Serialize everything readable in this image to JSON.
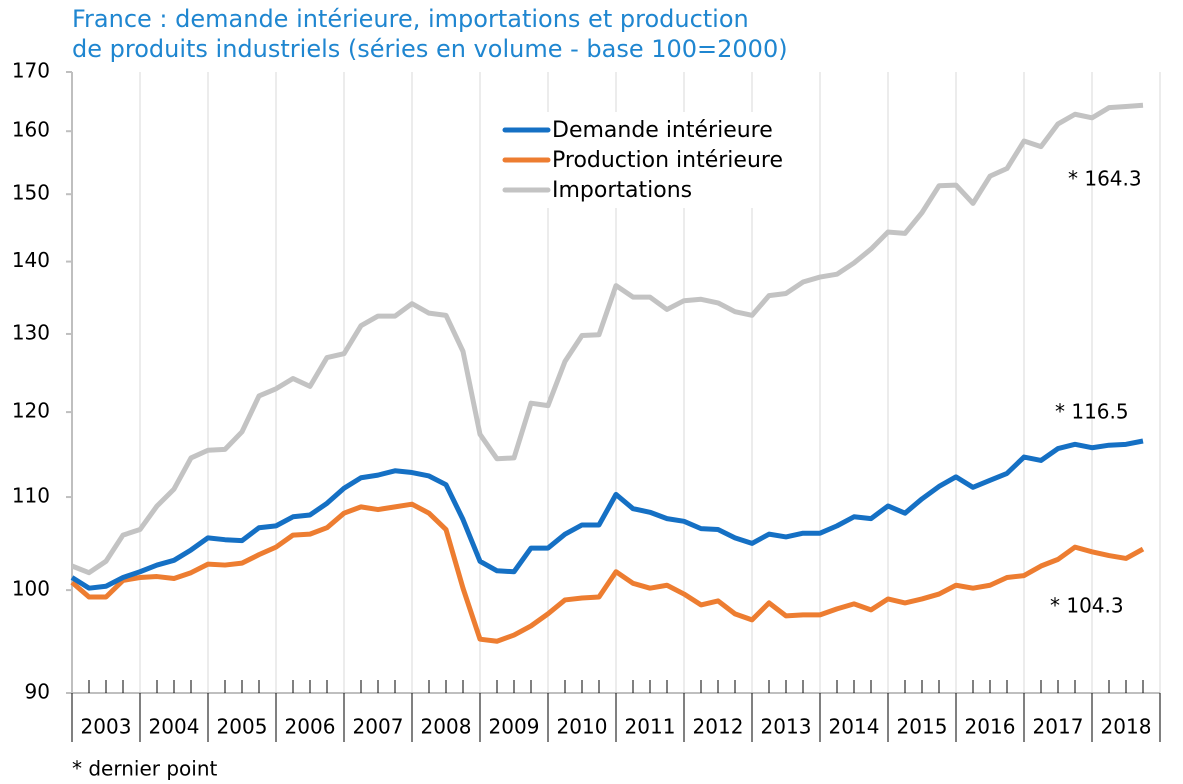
{
  "chart_data": {
    "type": "line",
    "title": [
      "France : demande intérieure, importations et production",
      "de produits industriels (séries en volume - base 100=2000)"
    ],
    "categories": [
      "2003",
      null,
      null,
      null,
      "2004",
      null,
      null,
      null,
      "2005",
      null,
      null,
      null,
      "2006",
      null,
      null,
      null,
      "2007",
      null,
      null,
      null,
      "2008",
      null,
      null,
      null,
      "2009",
      null,
      null,
      null,
      "2010",
      null,
      null,
      null,
      "2011",
      null,
      null,
      null,
      "2012",
      null,
      null,
      null,
      "2013",
      null,
      null,
      null,
      "2014",
      null,
      null,
      null,
      "2015",
      null,
      null,
      null,
      "2016",
      null,
      null,
      null,
      "2017",
      null,
      null,
      null,
      "2018",
      null,
      null,
      null
    ],
    "series": [
      {
        "name": "Demande intérieure",
        "color": "#1570c4",
        "values": [
          101.3,
          100.2,
          100.4,
          101.3,
          101.9,
          102.6,
          103.1,
          104.2,
          105.5,
          105.3,
          105.2,
          106.6,
          106.8,
          107.8,
          108.0,
          109.3,
          111.0,
          112.2,
          112.5,
          113.0,
          112.8,
          112.4,
          111.4,
          107.5,
          103.0,
          102.0,
          101.9,
          104.4,
          104.4,
          105.9,
          106.9,
          106.9,
          110.3,
          108.7,
          108.3,
          107.6,
          107.3,
          106.5,
          106.4,
          105.5,
          104.9,
          105.9,
          105.6,
          106.0,
          106.0,
          106.8,
          107.8,
          107.6,
          109.0,
          108.2,
          109.8,
          111.2,
          112.3,
          111.1,
          111.9,
          112.7,
          114.6,
          114.2,
          115.6,
          116.1,
          115.7,
          116.0,
          116.1,
          116.5
        ]
      },
      {
        "name": "Production intérieure",
        "color": "#ed7d31",
        "values": [
          100.8,
          99.3,
          99.3,
          101.0,
          101.3,
          101.4,
          101.2,
          101.8,
          102.7,
          102.6,
          102.8,
          103.7,
          104.5,
          105.8,
          105.9,
          106.6,
          108.2,
          108.9,
          108.6,
          108.9,
          109.2,
          108.2,
          106.4,
          100.2,
          95.1,
          94.9,
          95.5,
          96.4,
          97.6,
          99.0,
          99.2,
          99.3,
          101.9,
          100.7,
          100.2,
          100.5,
          99.6,
          98.5,
          98.9,
          97.6,
          97.0,
          98.7,
          97.4,
          97.5,
          97.5,
          98.1,
          98.6,
          98.0,
          99.1,
          98.7,
          99.1,
          99.6,
          100.5,
          100.2,
          100.5,
          101.3,
          101.5,
          102.5,
          103.2,
          104.5,
          104.0,
          103.6,
          103.3,
          104.3
        ]
      },
      {
        "name": "Importations",
        "color": "#c3c3c3",
        "values": [
          102.5,
          101.8,
          103.0,
          105.8,
          106.4,
          109.0,
          110.9,
          114.5,
          115.4,
          115.5,
          117.6,
          122.0,
          122.9,
          124.2,
          123.2,
          126.9,
          127.4,
          131.1,
          132.4,
          132.4,
          134.1,
          132.8,
          132.5,
          127.7,
          117.3,
          114.4,
          114.5,
          121.1,
          120.8,
          126.4,
          129.8,
          129.9,
          136.6,
          135.0,
          135.0,
          133.3,
          134.5,
          134.7,
          134.2,
          133.0,
          132.5,
          135.2,
          135.5,
          137.1,
          137.8,
          138.2,
          139.8,
          141.8,
          144.3,
          144.1,
          147.2,
          151.3,
          151.4,
          148.6,
          152.8,
          154.0,
          158.4,
          157.5,
          161.2,
          162.8,
          162.2,
          163.9,
          164.1,
          164.3
        ]
      }
    ],
    "annotations": [
      "* 164.3",
      "* 116.5",
      "* 104.3"
    ],
    "footnote": "* dernier point",
    "ylim": [
      90,
      170
    ],
    "yticks": [
      90,
      100,
      110,
      120,
      130,
      140,
      150,
      160,
      170
    ],
    "log_y": true,
    "grid_x": true
  }
}
